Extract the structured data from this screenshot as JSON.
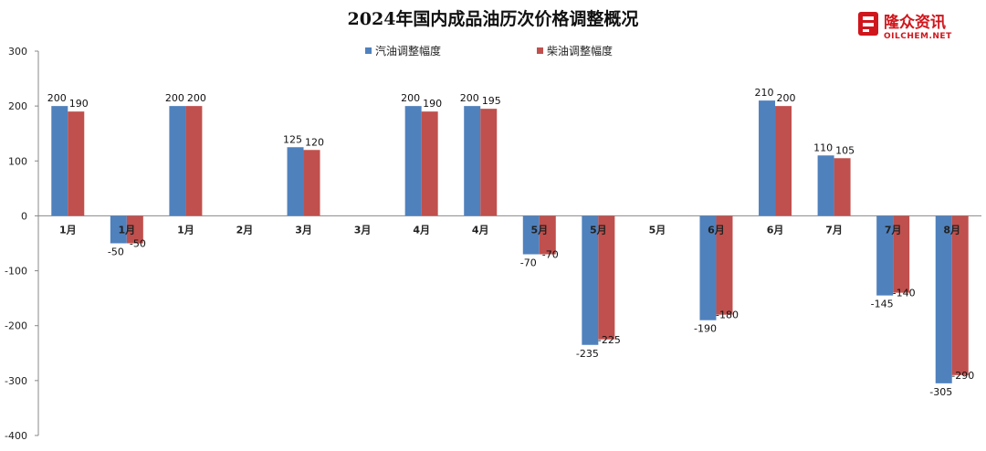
{
  "logo": {
    "brand": "隆众资讯",
    "domain": "OILCHEM.NET"
  },
  "chart_data": {
    "type": "bar",
    "title": "2024年国内成品油历次价格调整概况",
    "categories": [
      "1月",
      "1月",
      "1月",
      "2月",
      "3月",
      "3月",
      "4月",
      "4月",
      "5月",
      "5月",
      "5月",
      "6月",
      "6月",
      "7月",
      "7月",
      "8月"
    ],
    "series": [
      {
        "name": "汽油调整幅度",
        "color": "#4f81bd",
        "values": [
          200,
          -50,
          200,
          0,
          125,
          0,
          200,
          200,
          -70,
          -235,
          0,
          -190,
          210,
          110,
          -145,
          -305
        ]
      },
      {
        "name": "柴油调整幅度",
        "color": "#c0504d",
        "values": [
          190,
          -50,
          200,
          0,
          120,
          0,
          190,
          195,
          -70,
          -225,
          0,
          -180,
          200,
          105,
          -140,
          -290
        ]
      }
    ],
    "ylim": [
      -400,
      300
    ],
    "yticks": [
      -400,
      -300,
      -200,
      -100,
      0,
      100,
      200,
      300
    ],
    "legend": "top-center",
    "grid": false
  }
}
